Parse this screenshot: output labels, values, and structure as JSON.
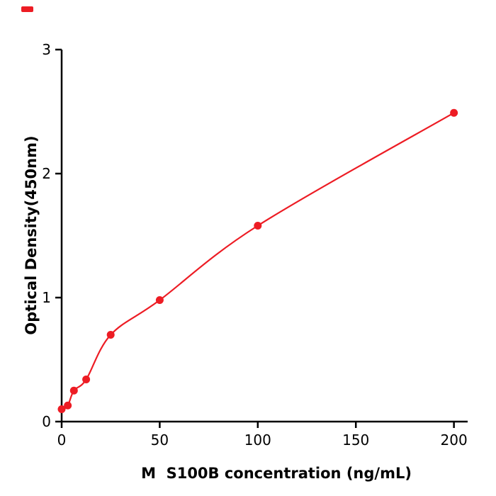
{
  "chart_data": {
    "type": "scatter",
    "title": "",
    "xlabel": "M  S100B concentration (ng/mL)",
    "ylabel": "Optical Density(450nm)",
    "x": [
      0,
      3.125,
      6.25,
      12.5,
      25,
      50,
      100,
      200
    ],
    "y": [
      0.1,
      0.13,
      0.25,
      0.34,
      0.7,
      0.98,
      1.58,
      2.49
    ],
    "has_fit_curve": true,
    "xlim": [
      0,
      207
    ],
    "ylim": [
      0,
      3
    ],
    "xticks": [
      0,
      50,
      100,
      150,
      200
    ],
    "yticks": [
      0,
      1,
      2,
      3
    ],
    "grid": false,
    "legend": "none",
    "marker_color": "#ed1c24",
    "line_color": "#ed1c24",
    "axis_color": "#000000"
  }
}
